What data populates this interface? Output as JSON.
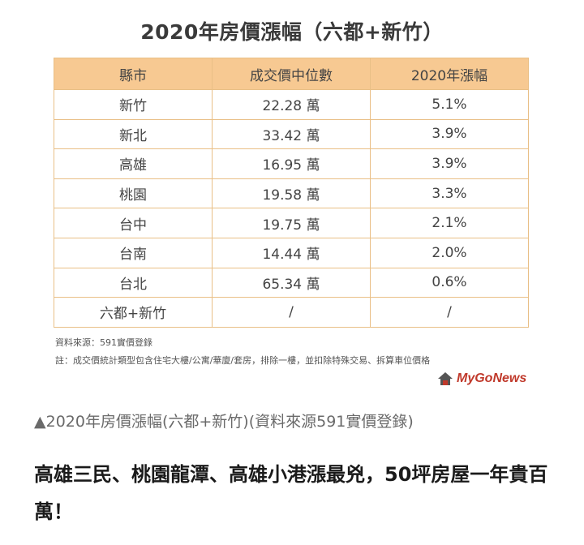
{
  "figure": {
    "title": "2020年房價漲幅（六都+新竹）",
    "headers": [
      "縣市",
      "成交價中位數",
      "2020年漲幅"
    ],
    "rows": [
      [
        "新竹",
        "22.28 萬",
        "5.1%"
      ],
      [
        "新北",
        "33.42 萬",
        "3.9%"
      ],
      [
        "高雄",
        "16.95 萬",
        "3.9%"
      ],
      [
        "桃園",
        "19.58 萬",
        "3.3%"
      ],
      [
        "台中",
        "19.75 萬",
        "2.1%"
      ],
      [
        "台南",
        "14.44 萬",
        "2.0%"
      ],
      [
        "台北",
        "65.34 萬",
        "0.6%"
      ],
      [
        "六都+新竹",
        "/",
        "/"
      ]
    ],
    "source_note": "資料來源：591實價登錄",
    "footnote": "註：成交價統計類型包含住宅大樓/公寓/華廈/套房，排除一樓，並扣除特殊交易、拆算車位價格",
    "logo_text": "MyGoNews",
    "colors": {
      "header_bg": "#f7c992",
      "border": "#e9bf86",
      "logo": "#c0392b"
    }
  },
  "caption": "▲2020年房價漲幅(六都+新竹)(資料來源591實價登錄)",
  "headline": "高雄三民、桃園龍潭、高雄小港漲最兇，50坪房屋一年貴百萬！"
}
